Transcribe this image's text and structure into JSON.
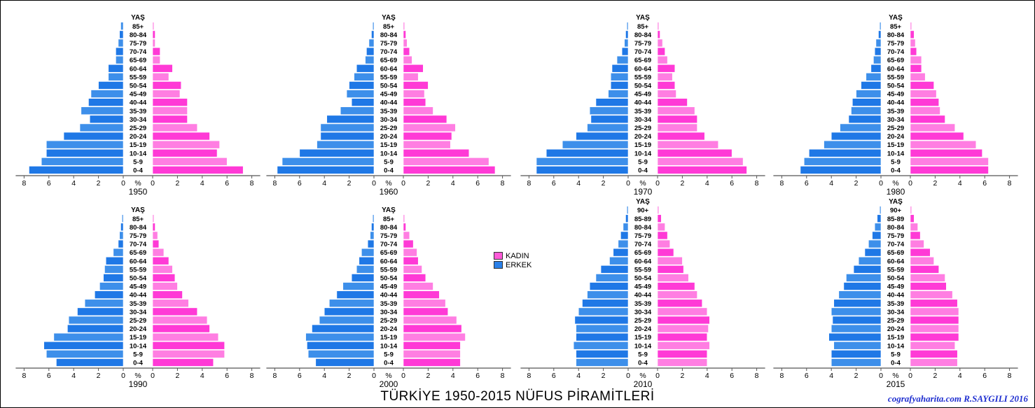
{
  "title": "TÜRKİYE 1950-2015 NÜFUS PİRAMİTLERİ",
  "credit": "cografyaharita.com  R.SAYGILI 2016",
  "colors": {
    "kadin": "#ff3ad6",
    "erkek": "#1f78e6",
    "kadin_light": "#ff7ee2",
    "erkek_light": "#3d8fea"
  },
  "legend": [
    {
      "label": "KADIN",
      "color": "#ff5ad8"
    },
    {
      "label": "ERKEK",
      "color": "#2a80e8"
    }
  ],
  "chart_data": [
    {
      "type": "bar",
      "year": "1950",
      "axis_label": "YAŞ",
      "unit_label": "%",
      "xticks": [
        "8",
        "6",
        "4",
        "2",
        "0",
        "0",
        "2",
        "4",
        "6",
        "8"
      ],
      "age_groups": [
        "85+",
        "80-84",
        "75-79",
        "70-74",
        "65-69",
        "60-64",
        "55-59",
        "50-54",
        "45-49",
        "40-44",
        "35-39",
        "30-34",
        "25-29",
        "20-24",
        "15-19",
        "10-14",
        "5-9",
        "0-4"
      ],
      "erkek": [
        0.2,
        0.3,
        0.4,
        0.6,
        0.6,
        1.2,
        1.2,
        2.0,
        2.6,
        2.8,
        3.4,
        2.7,
        3.5,
        4.8,
        6.2,
        6.2,
        6.6,
        7.6
      ],
      "kadin": [
        0.1,
        0.2,
        0.2,
        0.6,
        0.6,
        1.6,
        1.3,
        2.3,
        2.2,
        2.8,
        2.8,
        2.8,
        3.6,
        4.6,
        5.4,
        5.2,
        6.0,
        7.3
      ]
    },
    {
      "type": "bar",
      "year": "1960",
      "axis_label": "YAŞ",
      "unit_label": "%",
      "xticks": [
        "8",
        "6",
        "4",
        "2",
        "0",
        "0",
        "2",
        "4",
        "6",
        "8"
      ],
      "age_groups": [
        "85+",
        "80-84",
        "75-79",
        "70-74",
        "65-69",
        "60-64",
        "55-59",
        "50-54",
        "45-49",
        "40-44",
        "35-39",
        "30-34",
        "25-29",
        "20-24",
        "15-19",
        "10-14",
        "5-9",
        "0-4"
      ],
      "erkek": [
        0.1,
        0.2,
        0.4,
        0.6,
        0.7,
        1.4,
        1.6,
        2.0,
        2.2,
        1.8,
        2.7,
        3.8,
        4.3,
        4.3,
        4.6,
        6.0,
        7.4,
        7.8
      ],
      "kadin": [
        0.1,
        0.2,
        0.3,
        0.5,
        0.7,
        1.6,
        1.2,
        2.0,
        1.7,
        1.8,
        2.4,
        3.5,
        4.2,
        3.9,
        3.8,
        5.3,
        6.9,
        7.4
      ]
    },
    {
      "type": "bar",
      "year": "1970",
      "axis_label": "YAŞ",
      "unit_label": "%",
      "xticks": [
        "8",
        "6",
        "4",
        "2",
        "0",
        "0",
        "2",
        "4",
        "6",
        "8"
      ],
      "age_groups": [
        "85+",
        "80-84",
        "75-79",
        "70-74",
        "65-69",
        "60-64",
        "55-59",
        "50-54",
        "45-49",
        "40-44",
        "35-39",
        "30-34",
        "25-29",
        "20-24",
        "15-19",
        "10-14",
        "5-9",
        "0-4"
      ],
      "erkek": [
        0.1,
        0.2,
        0.3,
        0.5,
        0.9,
        1.3,
        1.4,
        1.4,
        1.6,
        2.6,
        3.1,
        3.0,
        3.3,
        4.2,
        5.3,
        6.6,
        7.4,
        7.4
      ],
      "kadin": [
        0.1,
        0.2,
        0.4,
        0.6,
        0.8,
        1.4,
        1.2,
        1.4,
        1.5,
        2.4,
        3.0,
        3.2,
        3.2,
        3.8,
        4.9,
        6.0,
        6.9,
        7.2
      ]
    },
    {
      "type": "bar",
      "year": "1980",
      "axis_label": "YAŞ",
      "unit_label": "%",
      "xticks": [
        "8",
        "6",
        "4",
        "2",
        "0",
        "0",
        "2",
        "4",
        "6",
        "8"
      ],
      "age_groups": [
        "85+",
        "80-84",
        "75-79",
        "70-74",
        "65-69",
        "60-64",
        "55-59",
        "50-54",
        "45-49",
        "40-44",
        "35-39",
        "30-34",
        "25-29",
        "20-24",
        "15-19",
        "10-14",
        "5-9",
        "0-4"
      ],
      "erkek": [
        0.1,
        0.2,
        0.4,
        0.5,
        0.6,
        0.8,
        1.2,
        1.6,
        2.0,
        2.3,
        2.4,
        2.6,
        3.3,
        4.0,
        4.6,
        5.8,
        6.2,
        6.5
      ],
      "kadin": [
        0.1,
        0.3,
        0.4,
        0.5,
        0.9,
        0.9,
        1.2,
        1.9,
        2.1,
        2.3,
        2.4,
        2.8,
        3.6,
        4.3,
        5.3,
        5.8,
        6.3,
        6.3
      ]
    },
    {
      "type": "bar",
      "year": "1990",
      "axis_label": "YAŞ",
      "unit_label": "%",
      "xticks": [
        "8",
        "6",
        "4",
        "2",
        "0",
        "0",
        "2",
        "4",
        "6",
        "8"
      ],
      "age_groups": [
        "85+",
        "80-84",
        "75-79",
        "70-74",
        "65-69",
        "60-64",
        "55-59",
        "50-54",
        "45-49",
        "40-44",
        "35-39",
        "30-34",
        "25-29",
        "20-24",
        "15-19",
        "10-14",
        "5-9",
        "0-4"
      ],
      "erkek": [
        0.1,
        0.2,
        0.3,
        0.4,
        0.8,
        1.4,
        1.5,
        1.6,
        1.9,
        2.3,
        3.1,
        3.7,
        4.4,
        4.5,
        5.6,
        6.4,
        6.2,
        5.4
      ],
      "kadin": [
        0.1,
        0.2,
        0.4,
        0.5,
        0.9,
        1.3,
        1.6,
        1.8,
        2.0,
        2.4,
        2.9,
        3.6,
        4.4,
        4.6,
        5.3,
        5.8,
        5.8,
        4.9
      ]
    },
    {
      "type": "bar",
      "year": "2000",
      "axis_label": "YAŞ",
      "unit_label": "%",
      "xticks": [
        "8",
        "6",
        "4",
        "2",
        "0",
        "0",
        "2",
        "4",
        "6",
        "8"
      ],
      "age_groups": [
        "85+",
        "80-84",
        "75-79",
        "70-74",
        "65-69",
        "60-64",
        "55-59",
        "50-54",
        "45-49",
        "40-44",
        "35-39",
        "30-34",
        "25-29",
        "20-24",
        "15-19",
        "10-14",
        "5-9",
        "0-4"
      ],
      "erkek": [
        0.1,
        0.2,
        0.3,
        0.5,
        1.0,
        1.2,
        1.4,
        1.8,
        2.5,
        3.0,
        3.6,
        4.0,
        4.4,
        5.0,
        5.5,
        5.4,
        5.3,
        4.7
      ],
      "kadin": [
        0.1,
        0.2,
        0.5,
        0.8,
        1.1,
        1.2,
        1.5,
        1.8,
        2.4,
        2.9,
        3.4,
        3.6,
        4.3,
        4.7,
        5.0,
        4.6,
        4.6,
        4.6
      ]
    },
    {
      "type": "bar",
      "year": "2010",
      "axis_label": "YAŞ",
      "unit_label": "%",
      "xticks": [
        "8",
        "6",
        "4",
        "2",
        "0",
        "0",
        "2",
        "4",
        "6",
        "8"
      ],
      "age_groups": [
        "90+",
        "85-89",
        "80-84",
        "75-79",
        "70-74",
        "65-69",
        "60-64",
        "55-59",
        "50-54",
        "45-49",
        "40-44",
        "35-39",
        "30-34",
        "25-29",
        "20-24",
        "15-19",
        "10-14",
        "5-9",
        "0-4"
      ],
      "erkek": [
        0.1,
        0.2,
        0.4,
        0.6,
        0.8,
        1.2,
        1.5,
        2.2,
        2.6,
        3.1,
        3.3,
        3.7,
        4.0,
        4.3,
        4.2,
        4.2,
        4.4,
        4.2,
        4.2
      ],
      "kadin": [
        0.1,
        0.3,
        0.6,
        0.8,
        1.0,
        1.3,
        2.0,
        2.1,
        2.5,
        3.0,
        3.2,
        3.6,
        4.0,
        4.2,
        4.1,
        4.0,
        4.2,
        4.0,
        4.0
      ]
    },
    {
      "type": "bar",
      "year": "2015",
      "axis_label": "YAŞ",
      "unit_label": "%",
      "xticks": [
        "8",
        "6",
        "4",
        "2",
        "0",
        "0",
        "2",
        "4",
        "6",
        "8"
      ],
      "age_groups": [
        "90+",
        "85-89",
        "80-84",
        "75-79",
        "70-74",
        "65-69",
        "60-64",
        "55-59",
        "50-54",
        "45-49",
        "40-44",
        "35-39",
        "30-34",
        "25-29",
        "20-24",
        "15-19",
        "10-14",
        "5-9",
        "0-4"
      ],
      "erkek": [
        0.1,
        0.3,
        0.5,
        0.7,
        1.0,
        1.3,
        1.8,
        2.2,
        2.8,
        3.0,
        3.4,
        3.8,
        4.0,
        3.9,
        4.0,
        4.2,
        3.8,
        4.0,
        4.0
      ],
      "kadin": [
        0.1,
        0.3,
        0.6,
        0.8,
        1.1,
        1.6,
        1.9,
        2.3,
        2.8,
        2.9,
        3.4,
        3.8,
        3.9,
        3.9,
        3.9,
        3.9,
        3.6,
        3.8,
        3.8
      ]
    }
  ]
}
